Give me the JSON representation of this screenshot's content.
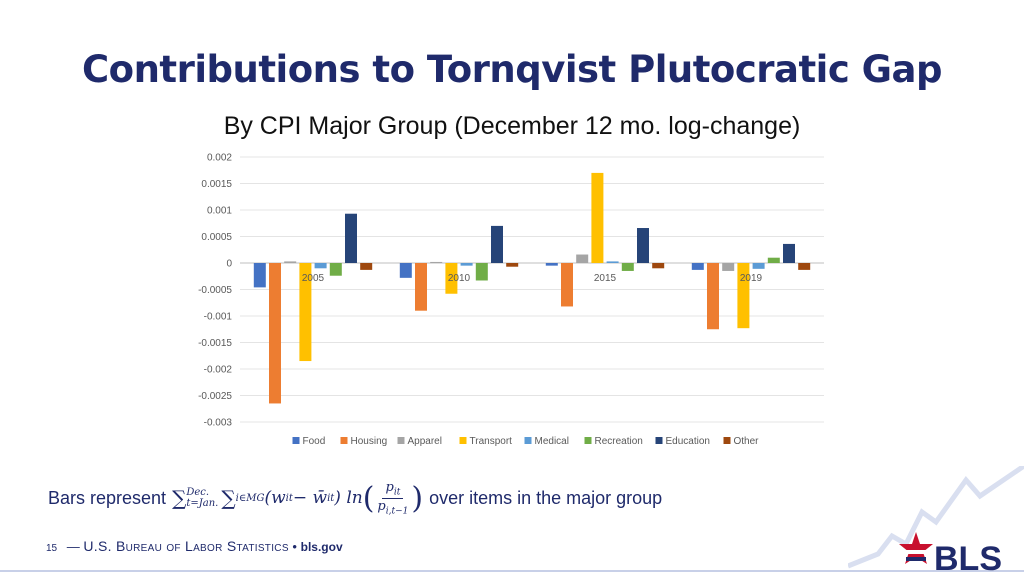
{
  "title": "Contributions to Tornqvist Plutocratic Gap",
  "subtitle": "By CPI Major Group (December 12 mo. log-change)",
  "chart_data": {
    "type": "bar",
    "categories": [
      "2005",
      "2010",
      "2015",
      "2019"
    ],
    "series": [
      {
        "name": "Food",
        "color": "#4472C4",
        "values": [
          -0.00046,
          -0.00028,
          -5e-05,
          -0.00013
        ]
      },
      {
        "name": "Housing",
        "color": "#ED7D31",
        "values": [
          -0.00265,
          -0.0009,
          -0.00082,
          -0.00125
        ]
      },
      {
        "name": "Apparel",
        "color": "#A5A5A5",
        "values": [
          3e-05,
          2e-05,
          0.00016,
          -0.00015
        ]
      },
      {
        "name": "Transport",
        "color": "#FFC000",
        "values": [
          -0.00185,
          -0.00058,
          0.0017,
          -0.00123
        ]
      },
      {
        "name": "Medical",
        "color": "#5B9BD5",
        "values": [
          -0.0001,
          -5e-05,
          3e-05,
          -0.00011
        ]
      },
      {
        "name": "Recreation",
        "color": "#70AD47",
        "values": [
          -0.00024,
          -0.00033,
          -0.00015,
          0.0001
        ]
      },
      {
        "name": "Education",
        "color": "#264478",
        "values": [
          0.00093,
          0.0007,
          0.00066,
          0.00036
        ]
      },
      {
        "name": "Other",
        "color": "#9E480E",
        "values": [
          -0.00013,
          -7e-05,
          -0.0001,
          -0.00013
        ]
      }
    ],
    "ylim": [
      -0.003,
      0.002
    ],
    "yticks": [
      0.002,
      0.0015,
      0.001,
      0.0005,
      0,
      -0.0005,
      -0.001,
      -0.0015,
      -0.002,
      -0.0025,
      -0.003
    ],
    "ytick_labels": [
      "0.002",
      "0.0015",
      "0.001",
      "0.0005",
      "0",
      "-0.0005",
      "-0.001",
      "-0.0015",
      "-0.002",
      "-0.0025",
      "-0.003"
    ],
    "grid": true,
    "legend_position": "bottom"
  },
  "formula": {
    "lead_text": "Bars represent",
    "upper_limit": "Dec.",
    "lower_limit": "t=Jan.",
    "inner_sum_index": "i∈MG",
    "weight_expr": "(w",
    "weight_sub": "it",
    "minus": " − w̄",
    "avg_weight_sub": "it",
    "close": ") ln",
    "numerator": "p",
    "numerator_sub": "it",
    "denominator": "p",
    "denominator_sub": "i,t−1",
    "trail_text": "over items in the major group"
  },
  "footer": {
    "page_number": "15",
    "dash": "—",
    "agency": "U.S. Bureau of Labor Statistics",
    "bullet": "•",
    "website": "bls.gov"
  },
  "logo": {
    "text": "BLS"
  }
}
